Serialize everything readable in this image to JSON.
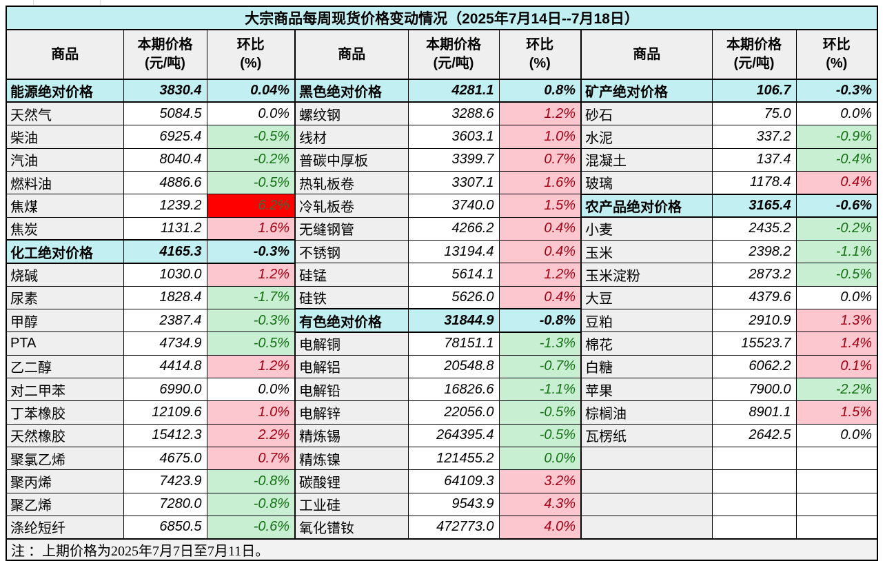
{
  "title": "大宗商品每周现货价格变动情况（2025年7月14日--7月18日）",
  "note": "注 ：上期价格为2025年7月7日至7月11日。",
  "header": {
    "commodity": "商品",
    "price": "本期价格\n(元/吨)",
    "pct": "环比\n(%)"
  },
  "colors": {
    "section_bg": "#c2f0f2",
    "header_bg": "#efefef",
    "name_bg": "#efefef",
    "rise_bg": "#fcc7ce",
    "rise_text": "#a00014",
    "fall_bg": "#c9efd2",
    "fall_text": "#157015",
    "strong_rise_bg": "#ff0000",
    "strong_rise_text": "#3f6b3f",
    "note_bg": "#f2f2f2"
  },
  "groups": [
    {
      "rows": [
        {
          "name": "能源绝对价格",
          "price": "3830.4",
          "pct": "0.04%",
          "kind": "section"
        },
        {
          "name": "天然气",
          "price": "5084.5",
          "pct": "0.0%",
          "kind": "flat"
        },
        {
          "name": "柴油",
          "price": "6925.4",
          "pct": "-0.5%",
          "kind": "down"
        },
        {
          "name": "汽油",
          "price": "8040.4",
          "pct": "-0.2%",
          "kind": "down"
        },
        {
          "name": "燃料油",
          "price": "4886.6",
          "pct": "-0.5%",
          "kind": "down"
        },
        {
          "name": "焦煤",
          "price": "1239.2",
          "pct": "6.2%",
          "kind": "hot"
        },
        {
          "name": "焦炭",
          "price": "1131.2",
          "pct": "1.6%",
          "kind": "up"
        },
        {
          "name": "化工绝对价格",
          "price": "4165.3",
          "pct": "-0.3%",
          "kind": "section"
        },
        {
          "name": "烧碱",
          "price": "1030.0",
          "pct": "1.2%",
          "kind": "up"
        },
        {
          "name": "尿素",
          "price": "1828.4",
          "pct": "-1.7%",
          "kind": "down"
        },
        {
          "name": "甲醇",
          "price": "2387.4",
          "pct": "-0.3%",
          "kind": "down"
        },
        {
          "name": "PTA",
          "price": "4734.9",
          "pct": "-0.5%",
          "kind": "down"
        },
        {
          "name": "乙二醇",
          "price": "4414.8",
          "pct": "1.2%",
          "kind": "up"
        },
        {
          "name": "对二甲苯",
          "price": "6990.0",
          "pct": "0.0%",
          "kind": "flat"
        },
        {
          "name": "丁苯橡胶",
          "price": "12109.6",
          "pct": "1.0%",
          "kind": "up"
        },
        {
          "name": "天然橡胶",
          "price": "15412.3",
          "pct": "2.2%",
          "kind": "up"
        },
        {
          "name": "聚氯乙烯",
          "price": "4675.0",
          "pct": "0.7%",
          "kind": "up"
        },
        {
          "name": "聚丙烯",
          "price": "7423.9",
          "pct": "-0.8%",
          "kind": "down"
        },
        {
          "name": "聚乙烯",
          "price": "7280.0",
          "pct": "-0.8%",
          "kind": "down"
        },
        {
          "name": "涤纶短纤",
          "price": "6850.5",
          "pct": "-0.6%",
          "kind": "down"
        }
      ]
    },
    {
      "rows": [
        {
          "name": "黑色绝对价格",
          "price": "4281.1",
          "pct": "0.8%",
          "kind": "section"
        },
        {
          "name": "螺纹钢",
          "price": "3288.6",
          "pct": "1.2%",
          "kind": "up"
        },
        {
          "name": "线材",
          "price": "3603.1",
          "pct": "1.0%",
          "kind": "up"
        },
        {
          "name": "普碳中厚板",
          "price": "3399.7",
          "pct": "0.7%",
          "kind": "up"
        },
        {
          "name": "热轧板卷",
          "price": "3307.1",
          "pct": "1.6%",
          "kind": "up"
        },
        {
          "name": "冷轧板卷",
          "price": "3740.0",
          "pct": "1.5%",
          "kind": "up"
        },
        {
          "name": "无缝钢管",
          "price": "4266.2",
          "pct": "0.4%",
          "kind": "up"
        },
        {
          "name": "不锈钢",
          "price": "13194.4",
          "pct": "0.4%",
          "kind": "up"
        },
        {
          "name": "硅锰",
          "price": "5614.1",
          "pct": "1.2%",
          "kind": "up"
        },
        {
          "name": "硅铁",
          "price": "5626.0",
          "pct": "0.4%",
          "kind": "up"
        },
        {
          "name": "有色绝对价格",
          "price": "31844.9",
          "pct": "-0.8%",
          "kind": "section"
        },
        {
          "name": "电解铜",
          "price": "78151.1",
          "pct": "-1.3%",
          "kind": "down"
        },
        {
          "name": "电解铝",
          "price": "20548.8",
          "pct": "-0.7%",
          "kind": "down"
        },
        {
          "name": "电解铅",
          "price": "16826.6",
          "pct": "-1.1%",
          "kind": "down"
        },
        {
          "name": "电解锌",
          "price": "22056.0",
          "pct": "-0.5%",
          "kind": "down"
        },
        {
          "name": "精炼锡",
          "price": "264395.4",
          "pct": "-0.5%",
          "kind": "down"
        },
        {
          "name": "精炼镍",
          "price": "121455.2",
          "pct": "0.0%",
          "kind": "zero-green"
        },
        {
          "name": "碳酸锂",
          "price": "64109.3",
          "pct": "3.2%",
          "kind": "up"
        },
        {
          "name": "工业硅",
          "price": "9543.9",
          "pct": "4.3%",
          "kind": "up"
        },
        {
          "name": "氧化镨钕",
          "price": "472773.0",
          "pct": "4.0%",
          "kind": "up"
        }
      ]
    },
    {
      "rows": [
        {
          "name": "矿产绝对价格",
          "price": "106.7",
          "pct": "-0.3%",
          "kind": "section"
        },
        {
          "name": "砂石",
          "price": "75.0",
          "pct": "0.0%",
          "kind": "flat"
        },
        {
          "name": "水泥",
          "price": "337.2",
          "pct": "-0.9%",
          "kind": "down"
        },
        {
          "name": "混凝土",
          "price": "137.4",
          "pct": "-0.4%",
          "kind": "down"
        },
        {
          "name": "玻璃",
          "price": "1178.4",
          "pct": "0.4%",
          "kind": "up"
        },
        {
          "name": "农产品绝对价格",
          "price": "3165.4",
          "pct": "-0.6%",
          "kind": "section"
        },
        {
          "name": "小麦",
          "price": "2435.2",
          "pct": "-0.2%",
          "kind": "down"
        },
        {
          "name": "玉米",
          "price": "2398.2",
          "pct": "-1.1%",
          "kind": "down"
        },
        {
          "name": "玉米淀粉",
          "price": "2873.2",
          "pct": "-0.5%",
          "kind": "down"
        },
        {
          "name": "大豆",
          "price": "4379.6",
          "pct": "0.0%",
          "kind": "flat"
        },
        {
          "name": "豆粕",
          "price": "2910.9",
          "pct": "1.3%",
          "kind": "up"
        },
        {
          "name": "棉花",
          "price": "15523.7",
          "pct": "1.4%",
          "kind": "up"
        },
        {
          "name": "白糖",
          "price": "6062.2",
          "pct": "0.1%",
          "kind": "up"
        },
        {
          "name": "苹果",
          "price": "7900.0",
          "pct": "-2.2%",
          "kind": "down"
        },
        {
          "name": "棕榈油",
          "price": "8901.1",
          "pct": "1.5%",
          "kind": "up"
        },
        {
          "name": "瓦楞纸",
          "price": "2642.5",
          "pct": "0.0%",
          "kind": "flat"
        },
        {
          "name": "",
          "price": "",
          "pct": "",
          "kind": "empty"
        },
        {
          "name": "",
          "price": "",
          "pct": "",
          "kind": "empty"
        },
        {
          "name": "",
          "price": "",
          "pct": "",
          "kind": "empty"
        },
        {
          "name": "",
          "price": "",
          "pct": "",
          "kind": "empty"
        }
      ]
    }
  ]
}
